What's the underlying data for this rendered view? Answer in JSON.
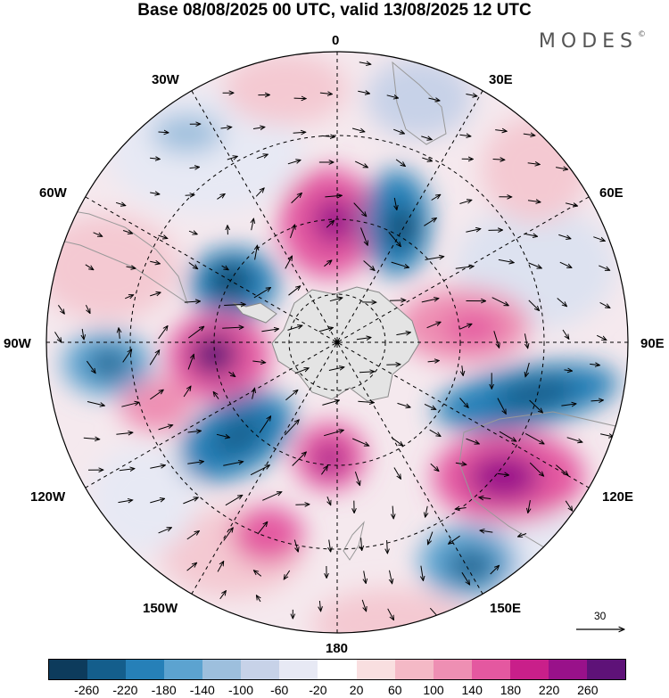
{
  "title": "Base 08/08/2025 00 UTC, valid 13/08/2025 12 UTC",
  "brand": {
    "name": "MODES",
    "mark": "©"
  },
  "longitude_labels": [
    "0",
    "30E",
    "60E",
    "90E",
    "120E",
    "150E",
    "180",
    "150W",
    "120W",
    "90W",
    "60W",
    "30W"
  ],
  "vector_scale": {
    "value": "30"
  },
  "colorbar": {
    "colors": [
      "#0d3b5c",
      "#145e8c",
      "#2680b8",
      "#5ca3d0",
      "#9dbfdd",
      "#c7d2e8",
      "#e7e9f4",
      "#ffffff",
      "#f9dfe0",
      "#f4b9c6",
      "#ee8fb3",
      "#e458a0",
      "#c91f8a",
      "#99118a",
      "#5e1278"
    ],
    "ticks": [
      "-260",
      "-220",
      "-180",
      "-140",
      "-100",
      "-60",
      "-20",
      "20",
      "60",
      "100",
      "140",
      "180",
      "220",
      "260"
    ]
  }
}
